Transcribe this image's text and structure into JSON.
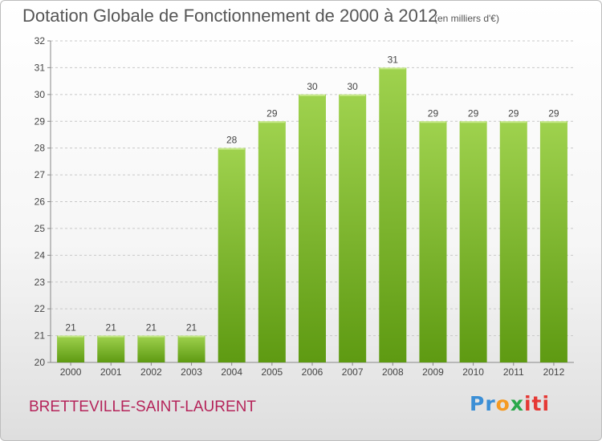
{
  "header": {
    "title": "Dotation Globale de Fonctionnement de 2000 à 2012",
    "unit": "(en milliers d'€)"
  },
  "footer": {
    "commune": "BRETTEVILLE-SAINT-LAURENT",
    "logo": [
      "Pr",
      "o",
      "x",
      "iti"
    ]
  },
  "colors": {
    "bar_top": "#9fd24e",
    "bar_bottom": "#5e9a12",
    "grid": "#c8c8c8",
    "commune_text": "#b5245a"
  },
  "chart_data": {
    "type": "bar",
    "title": "Dotation Globale de Fonctionnement de 2000 à 2012",
    "subtitle": "(en milliers d'€)",
    "categories": [
      "2000",
      "2001",
      "2002",
      "2003",
      "2004",
      "2005",
      "2006",
      "2007",
      "2008",
      "2009",
      "2010",
      "2011",
      "2012"
    ],
    "values": [
      21,
      21,
      21,
      21,
      28,
      29,
      30,
      30,
      31,
      29,
      29,
      29,
      29
    ],
    "ylim": [
      20,
      32
    ],
    "yticks": [
      20,
      21,
      22,
      23,
      24,
      25,
      26,
      27,
      28,
      29,
      30,
      31,
      32
    ],
    "grid": true,
    "data_labels": true
  }
}
